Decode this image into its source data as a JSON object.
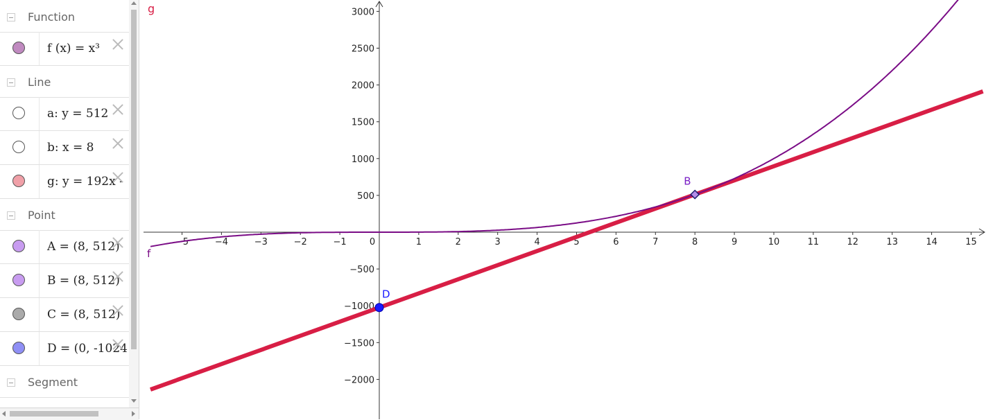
{
  "algebra": {
    "groups": [
      {
        "label": "Function"
      },
      {
        "label": "Line"
      },
      {
        "label": "Point"
      },
      {
        "label": "Segment"
      }
    ],
    "items": [
      {
        "expr": "f (x)  =  x³",
        "color": "#c08ac0"
      },
      {
        "expr": "a: y  =  512",
        "color": "#ffffff"
      },
      {
        "expr": "b: x  =  8",
        "color": "#ffffff"
      },
      {
        "expr": "g: y  =  192x -",
        "color": "#f0a0a8"
      },
      {
        "expr": "A  =  (8, 512)",
        "color": "#c89cf0"
      },
      {
        "expr": "B  =  (8, 512)",
        "color": "#c89cf0"
      },
      {
        "expr": "C  =  (8, 512)",
        "color": "#aaaaaa"
      },
      {
        "expr": "D  =  (0, -1024",
        "color": "#8f8ff5"
      }
    ]
  },
  "graph": {
    "label_g": "g",
    "label_f": "f",
    "label_B": "B",
    "label_D": "D",
    "xlim": [
      -5.8,
      15.3
    ],
    "ylim": [
      -2500,
      3150
    ],
    "x_ticks": [
      -5,
      -4,
      -3,
      -2,
      -1,
      0,
      1,
      2,
      3,
      4,
      5,
      6,
      7,
      8,
      9,
      10,
      11,
      12,
      13,
      14,
      15
    ],
    "y_ticks": [
      -2000,
      -1500,
      -1000,
      -500,
      500,
      1000,
      1500,
      2000,
      2500,
      3000
    ],
    "curve_f": {
      "name": "f",
      "expression": "x^3",
      "color": "#7a0c86"
    },
    "line_g": {
      "name": "g",
      "slope": 192,
      "intercept": -1024,
      "color": "#d81e45"
    },
    "point_B": {
      "x": 8,
      "y": 512,
      "color": "#7a1fc6"
    },
    "point_D": {
      "x": 0,
      "y": -1024,
      "color": "#1a1aff"
    }
  }
}
